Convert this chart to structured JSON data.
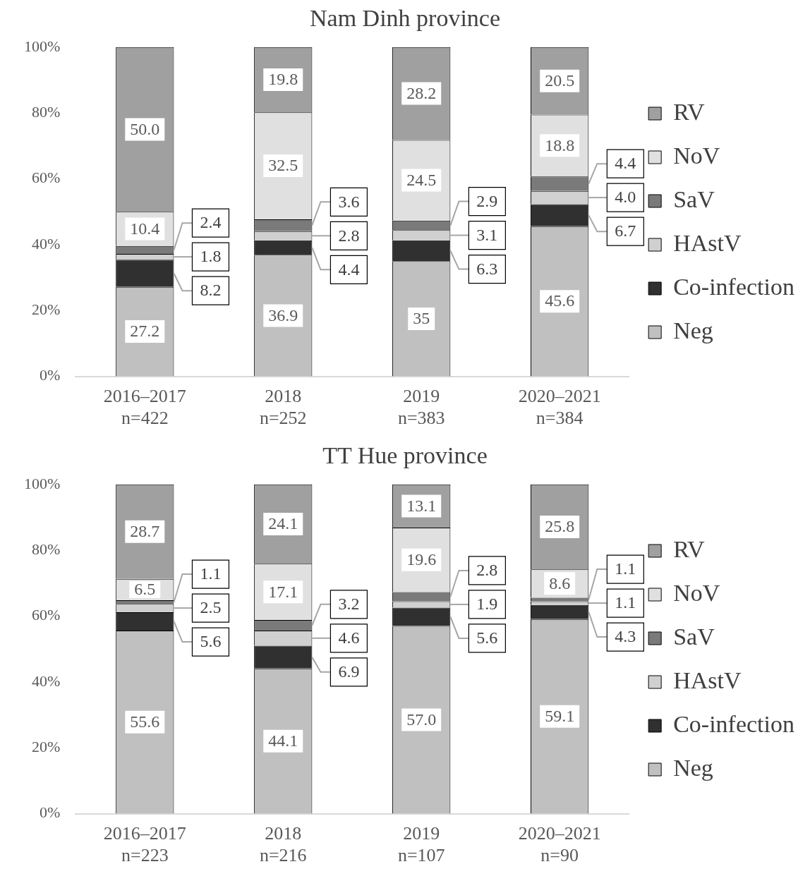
{
  "chart_data": [
    {
      "type": "bar",
      "title": "Nam Dinh province",
      "stacked": true,
      "legend": "right",
      "categories": [
        "2016–2017\nn=422",
        "2018\nn=252",
        "2019\nn=383",
        "2020–2021\nn=384"
      ],
      "ylim": [
        0,
        100
      ],
      "yticks": [
        {
          "value": 0,
          "label": "0%"
        },
        {
          "value": 20,
          "label": "20%"
        },
        {
          "value": 40,
          "label": "40%"
        },
        {
          "value": 60,
          "label": "60%"
        },
        {
          "value": 80,
          "label": "80%"
        },
        {
          "value": 100,
          "label": "100%"
        }
      ],
      "series": [
        {
          "name": "Neg",
          "color": "#c0c0c0",
          "values": [
            27.2,
            36.9,
            35,
            45.6
          ],
          "value_labels": [
            "27.2",
            "36.9",
            "35",
            "45.6"
          ]
        },
        {
          "name": "Co-infection",
          "color": "#303030",
          "values": [
            8.2,
            4.4,
            6.3,
            6.7
          ],
          "value_labels": [
            "8.2",
            "4.4",
            "6.3",
            "6.7"
          ]
        },
        {
          "name": "HAstV",
          "color": "#d0d0d0",
          "values": [
            1.8,
            2.8,
            3.1,
            4.0
          ],
          "value_labels": [
            "1.8",
            "2.8",
            "3.1",
            "4.0"
          ]
        },
        {
          "name": "SaV",
          "color": "#7a7a7a",
          "values": [
            2.4,
            3.6,
            2.9,
            4.4
          ],
          "value_labels": [
            "2.4",
            "3.6",
            "2.9",
            "4.4"
          ]
        },
        {
          "name": "NoV",
          "color": "#e0e0e0",
          "values": [
            10.4,
            32.5,
            24.5,
            18.8
          ],
          "value_labels": [
            "10.4",
            "32.5",
            "24.5",
            "18.8"
          ]
        },
        {
          "name": "RV",
          "color": "#a0a0a0",
          "values": [
            50.0,
            19.8,
            28.2,
            20.5
          ],
          "value_labels": [
            "50.0",
            "19.8",
            "28.2",
            "20.5"
          ]
        }
      ]
    },
    {
      "type": "bar",
      "title": "TT Hue province",
      "stacked": true,
      "legend": "right",
      "categories": [
        "2016–2017\nn=223",
        "2018\nn=216",
        "2019\nn=107",
        "2020–2021\nn=90"
      ],
      "ylim": [
        0,
        100
      ],
      "yticks": [
        {
          "value": 0,
          "label": "0%"
        },
        {
          "value": 20,
          "label": "20%"
        },
        {
          "value": 40,
          "label": "40%"
        },
        {
          "value": 60,
          "label": "60%"
        },
        {
          "value": 80,
          "label": "80%"
        },
        {
          "value": 100,
          "label": "100%"
        }
      ],
      "series": [
        {
          "name": "Neg",
          "color": "#c0c0c0",
          "values": [
            55.6,
            44.1,
            57.0,
            59.1
          ],
          "value_labels": [
            "55.6",
            "44.1",
            "57.0",
            "59.1"
          ]
        },
        {
          "name": "Co-infection",
          "color": "#303030",
          "values": [
            5.6,
            6.9,
            5.6,
            4.3
          ],
          "value_labels": [
            "5.6",
            "6.9",
            "5.6",
            "4.3"
          ]
        },
        {
          "name": "HAstV",
          "color": "#d0d0d0",
          "values": [
            2.5,
            4.6,
            1.9,
            1.1
          ],
          "value_labels": [
            "2.5",
            "4.6",
            "1.9",
            "1.1"
          ]
        },
        {
          "name": "SaV",
          "color": "#7a7a7a",
          "values": [
            1.1,
            3.2,
            2.8,
            1.1
          ],
          "value_labels": [
            "1.1",
            "3.2",
            "2.8",
            "1.1"
          ]
        },
        {
          "name": "NoV",
          "color": "#e0e0e0",
          "values": [
            6.5,
            17.1,
            19.6,
            8.6
          ],
          "value_labels": [
            "6.5",
            "17.1",
            "19.6",
            "8.6"
          ]
        },
        {
          "name": "RV",
          "color": "#a0a0a0",
          "values": [
            28.7,
            24.1,
            13.1,
            25.8
          ],
          "value_labels": [
            "28.7",
            "24.1",
            "13.1",
            "25.8"
          ]
        }
      ]
    }
  ]
}
